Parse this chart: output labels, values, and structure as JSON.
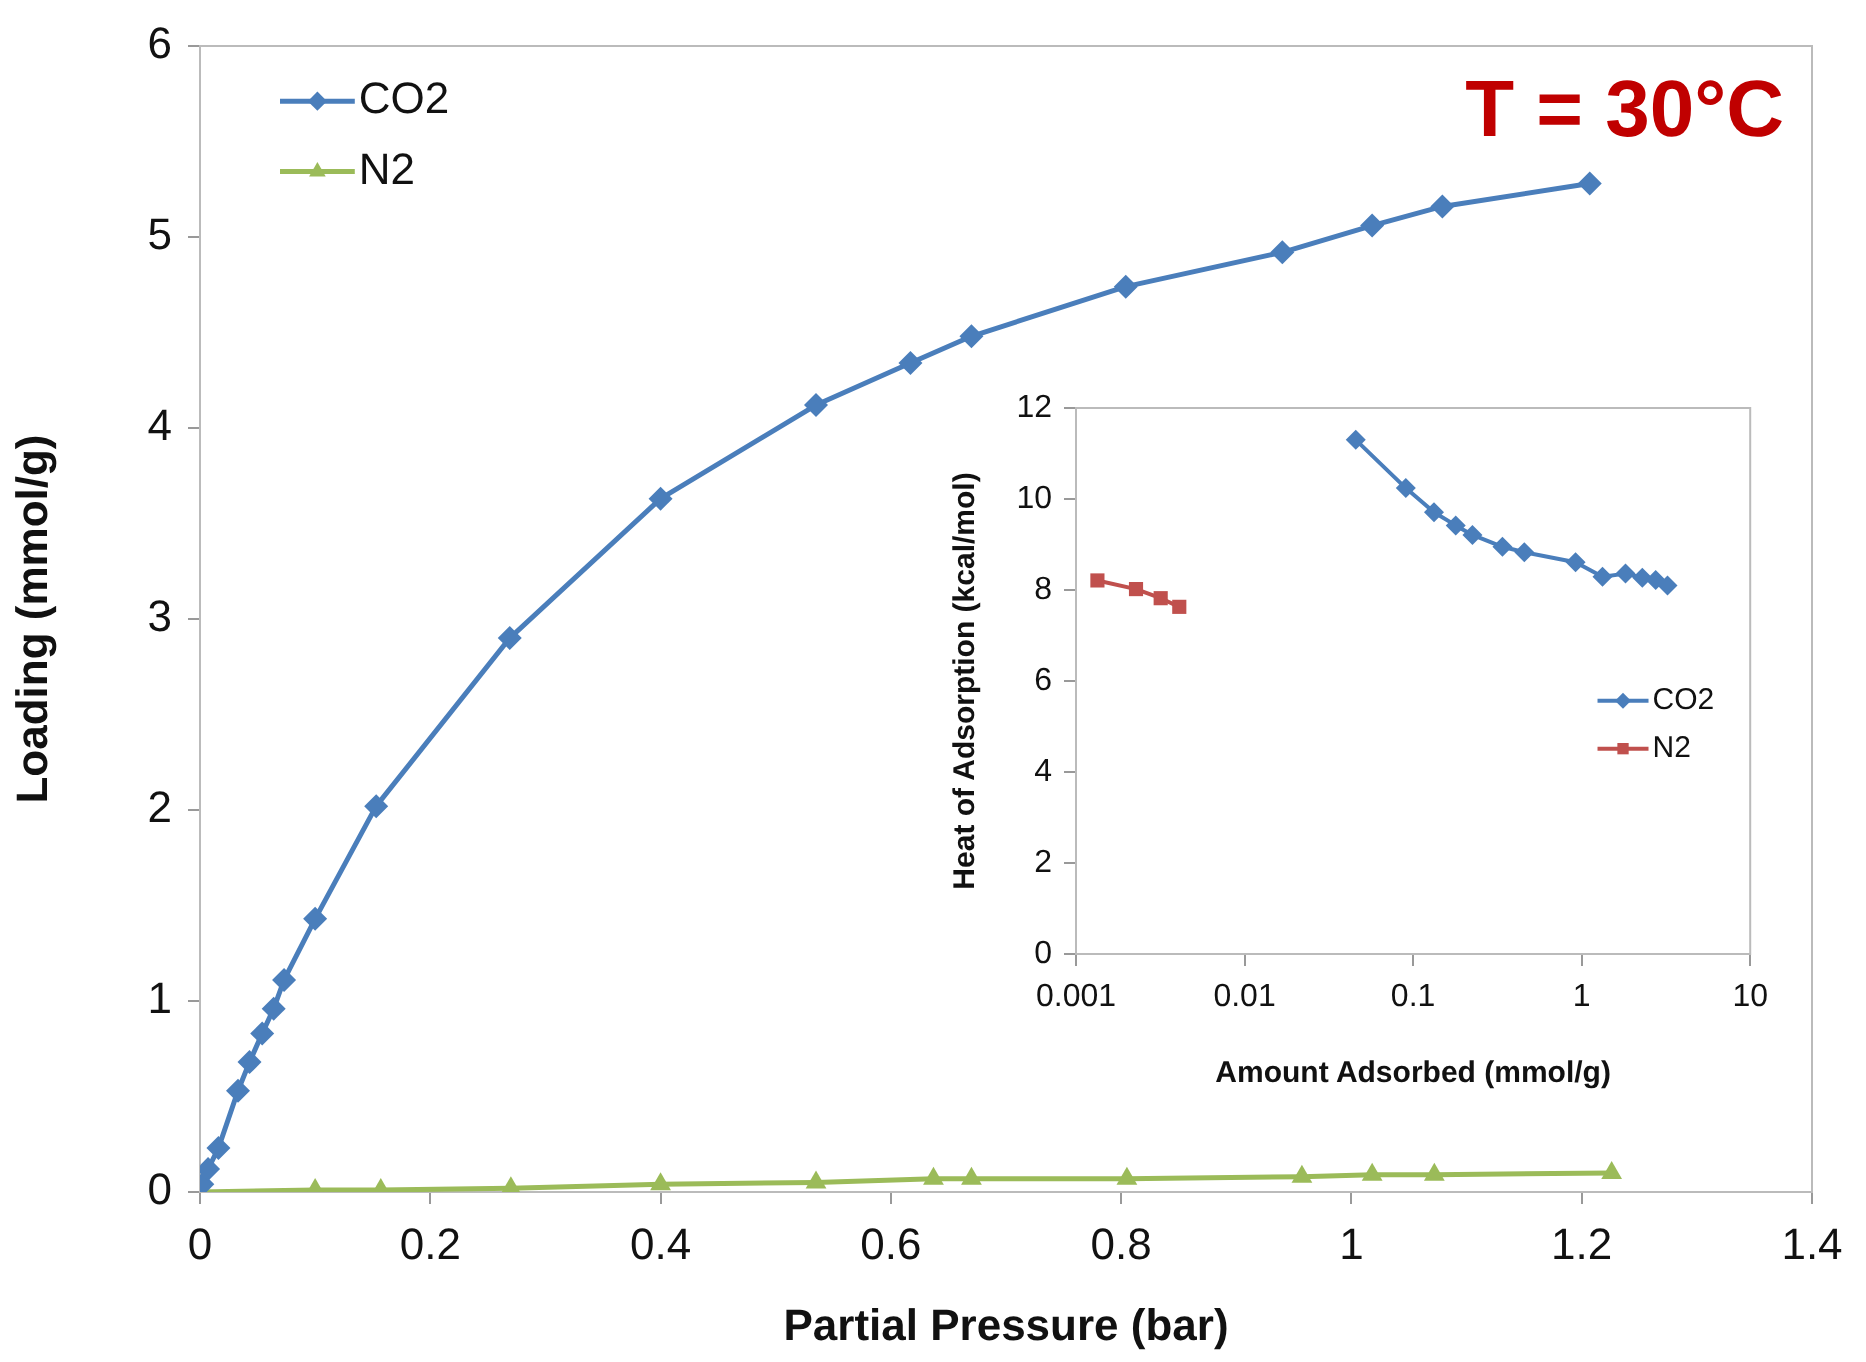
{
  "chart_data": [
    {
      "type": "line",
      "xlabel": "Partial Pressure (bar)",
      "ylabel": "Loading (mmol/g)",
      "annotations": [
        "T = 30°C"
      ],
      "xlim": [
        0,
        1.4
      ],
      "xticks": [
        0,
        0.2,
        0.4,
        0.6,
        0.8,
        1,
        1.2,
        1.4
      ],
      "ylim": [
        0,
        6
      ],
      "yticks": [
        0,
        1,
        2,
        3,
        4,
        5,
        6
      ],
      "grid": false,
      "legend": "top left",
      "line_style": "solid",
      "series": [
        {
          "name": "CO2",
          "color": "#4a7ebb",
          "marker": "diamond",
          "x": [
            0.002,
            0.007,
            0.016,
            0.033,
            0.043,
            0.054,
            0.064,
            0.073,
            0.1,
            0.153,
            0.269,
            0.4,
            0.535,
            0.617,
            0.67,
            0.804,
            0.94,
            1.018,
            1.079,
            1.207
          ],
          "values": [
            0.04,
            0.12,
            0.23,
            0.53,
            0.68,
            0.83,
            0.96,
            1.11,
            1.43,
            2.02,
            2.9,
            3.63,
            4.12,
            4.34,
            4.48,
            4.74,
            4.92,
            5.06,
            5.16,
            5.28
          ]
        },
        {
          "name": "N2",
          "color": "#9bbb59",
          "marker": "triangle",
          "x": [
            0,
            0.1,
            0.157,
            0.27,
            0.4,
            0.535,
            0.637,
            0.67,
            0.805,
            0.957,
            1.018,
            1.072,
            1.226
          ],
          "values": [
            0,
            0.01,
            0.01,
            0.02,
            0.04,
            0.05,
            0.07,
            0.07,
            0.07,
            0.08,
            0.09,
            0.09,
            0.1
          ]
        }
      ]
    },
    {
      "type": "line",
      "xlabel": "Amount Adsorbed (mmol/g)",
      "ylabel": "Heat of Adsorption (kcal/mol)",
      "log": "x",
      "xlim": [
        0.001,
        10
      ],
      "xticks": [
        0.001,
        0.01,
        0.1,
        1,
        10
      ],
      "ylim": [
        0,
        12
      ],
      "yticks": [
        0,
        2,
        4,
        6,
        8,
        10,
        12
      ],
      "grid": false,
      "legend": "right",
      "line_style": "solid",
      "series": [
        {
          "name": "CO2",
          "color": "#4a7ebb",
          "marker": "diamond",
          "x": [
            0.0457,
            0.0905,
            0.133,
            0.179,
            0.225,
            0.339,
            0.457,
            0.92,
            1.33,
            1.82,
            2.29,
            2.75,
            3.23
          ],
          "values": [
            11.3,
            10.24,
            9.71,
            9.42,
            9.21,
            8.95,
            8.83,
            8.61,
            8.29,
            8.36,
            8.27,
            8.22,
            8.1
          ]
        },
        {
          "name": "N2",
          "color": "#c0504d",
          "marker": "square",
          "x": [
            0.00134,
            0.00227,
            0.00318,
            0.0041
          ],
          "values": [
            8.21,
            8.02,
            7.82,
            7.63
          ]
        }
      ]
    }
  ]
}
